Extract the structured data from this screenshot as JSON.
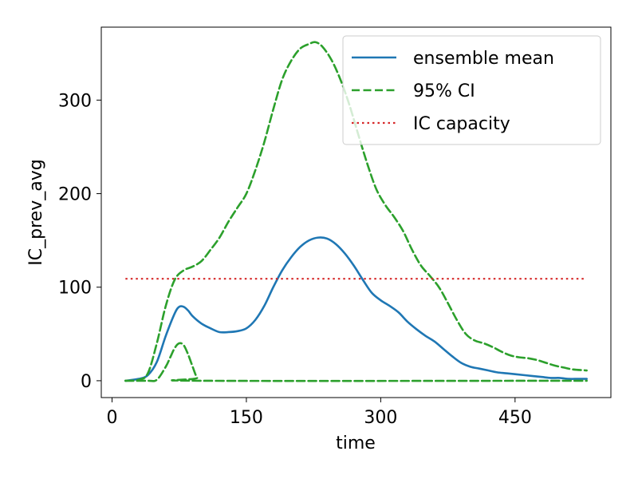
{
  "chart_data": {
    "type": "line",
    "xlabel": "time",
    "ylabel": "IC_prev_avg",
    "xlim": [
      -12,
      557
    ],
    "ylim": [
      -18,
      378
    ],
    "xticks": [
      0,
      150,
      300,
      450
    ],
    "yticks": [
      0,
      100,
      200,
      300
    ],
    "legend_position": "top-right",
    "grid": false,
    "series": [
      {
        "name": "ensemble mean",
        "style": "solid",
        "color": "#1f77b4",
        "x": [
          15,
          30,
          40,
          50,
          60,
          70,
          75,
          80,
          85,
          90,
          100,
          110,
          120,
          130,
          140,
          150,
          160,
          170,
          180,
          190,
          200,
          210,
          220,
          230,
          240,
          250,
          260,
          270,
          280,
          290,
          300,
          310,
          320,
          330,
          340,
          350,
          360,
          370,
          380,
          390,
          400,
          410,
          420,
          430,
          440,
          450,
          460,
          470,
          480,
          490,
          500,
          510,
          520,
          530
        ],
        "y": [
          0,
          2,
          6,
          20,
          48,
          72,
          79,
          79,
          75,
          69,
          61,
          56,
          52,
          52,
          53,
          56,
          65,
          80,
          100,
          118,
          132,
          143,
          150,
          153,
          152,
          146,
          136,
          123,
          108,
          94,
          86,
          80,
          73,
          63,
          55,
          48,
          42,
          34,
          26,
          19,
          15,
          13,
          11,
          9,
          8,
          7,
          6,
          5,
          4,
          3,
          3,
          2,
          2,
          2
        ]
      },
      {
        "name": "95% CI",
        "style": "dashed",
        "color": "#2ca02c",
        "x": [
          15,
          30,
          40,
          50,
          60,
          70,
          80,
          90,
          100,
          110,
          120,
          130,
          140,
          150,
          160,
          170,
          180,
          190,
          200,
          210,
          220,
          227,
          235,
          245,
          255,
          265,
          275,
          285,
          295,
          305,
          315,
          325,
          335,
          345,
          355,
          365,
          375,
          385,
          395,
          405,
          415,
          425,
          435,
          445,
          455,
          465,
          475,
          485,
          495,
          505,
          515,
          530
        ],
        "y": [
          0,
          1,
          8,
          40,
          80,
          108,
          118,
          122,
          128,
          140,
          153,
          170,
          185,
          200,
          225,
          255,
          290,
          322,
          342,
          355,
          360,
          362,
          357,
          343,
          322,
          295,
          263,
          232,
          205,
          188,
          175,
          160,
          140,
          123,
          112,
          100,
          83,
          65,
          50,
          43,
          40,
          36,
          31,
          27,
          25,
          24,
          22,
          19,
          16,
          14,
          12,
          11
        ]
      },
      {
        "name": "",
        "style": "dashed",
        "color": "#2ca02c",
        "x": [
          15,
          40,
          50,
          60,
          65,
          70,
          75,
          80,
          85,
          90,
          95,
          100,
          530
        ],
        "y": [
          0,
          0,
          1,
          15,
          25,
          35,
          40,
          38,
          28,
          15,
          3,
          0,
          0
        ]
      },
      {
        "name": "IC capacity",
        "style": "dotted",
        "color": "#d62728",
        "x": [
          15,
          530
        ],
        "y": [
          109,
          109
        ]
      }
    ]
  }
}
